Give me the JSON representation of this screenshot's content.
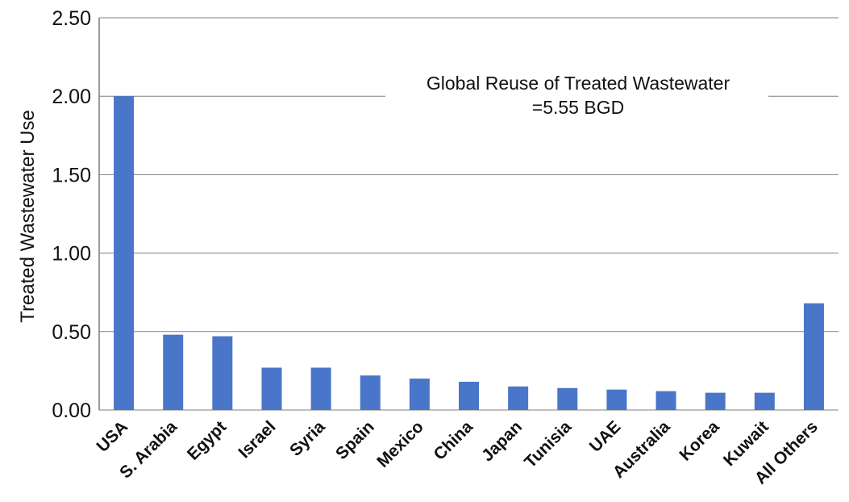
{
  "chart_data": {
    "type": "bar",
    "title": "",
    "xlabel": "",
    "ylabel": "Treated Wastewater Use",
    "ylim": [
      0,
      2.5
    ],
    "yticks": [
      "0.00",
      "0.50",
      "1.00",
      "1.50",
      "2.00",
      "2.50"
    ],
    "grid": true,
    "legend": "none",
    "categories": [
      "USA",
      "S. Arabia",
      "Egypt",
      "Israel",
      "Syria",
      "Spain",
      "Mexico",
      "China",
      "Japan",
      "Tunisia",
      "UAE",
      "Australia",
      "Korea",
      "Kuwait",
      "All Others"
    ],
    "values": [
      2.0,
      0.48,
      0.47,
      0.27,
      0.27,
      0.22,
      0.2,
      0.18,
      0.15,
      0.14,
      0.13,
      0.12,
      0.11,
      0.11,
      0.68
    ],
    "bar_color": "#4a76c9",
    "gridline_color": "#7f7f7f",
    "annotation": {
      "line1": "Global Reuse of Treated Wastewater",
      "line2": "=5.55 BGD"
    }
  }
}
